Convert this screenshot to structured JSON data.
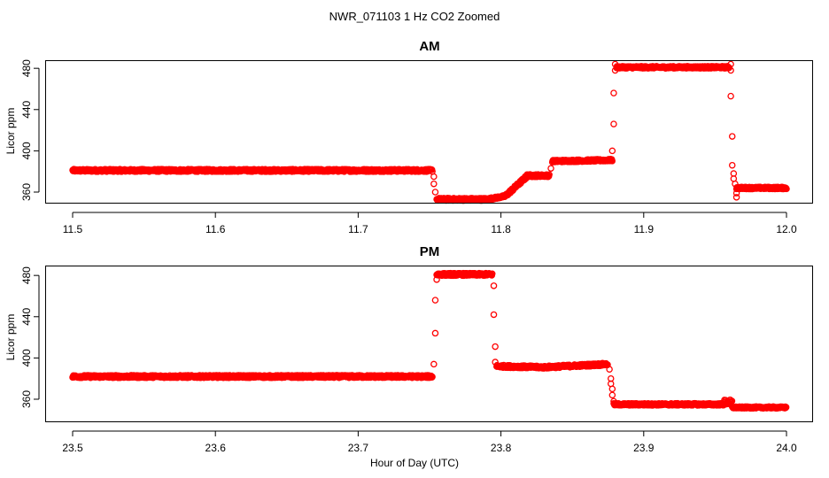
{
  "figure": {
    "title": "NWR_071103  1 Hz CO2 Zoomed",
    "xlabel": "Hour of Day (UTC)"
  },
  "colors": {
    "points": "#ff0000",
    "axes": "#000000",
    "background": "#ffffff"
  },
  "chart_data": [
    {
      "type": "scatter",
      "title": "AM",
      "xlabel": "",
      "ylabel": "Licor ppm",
      "xlim": [
        11.5,
        12.0
      ],
      "ylim": [
        346,
        489
      ],
      "x_ticks": [
        "11.5",
        "11.6",
        "11.7",
        "11.8",
        "11.9",
        "12.0"
      ],
      "y_ticks": [
        "360",
        "400",
        "440",
        "480"
      ],
      "grid": false,
      "segments": [
        {
          "x": [
            11.5,
            11.752
          ],
          "y": [
            381,
            381
          ],
          "noise": 1.2
        },
        {
          "x": [
            11.755,
            11.79
          ],
          "y": [
            353,
            353
          ],
          "noise": 1.2
        },
        {
          "x": [
            11.79,
            11.803
          ],
          "y": [
            353,
            356
          ],
          "noise": 1.0
        },
        {
          "x": [
            11.803,
            11.818
          ],
          "y": [
            356,
            375
          ],
          "noise": 1.5
        },
        {
          "x": [
            11.818,
            11.834
          ],
          "y": [
            376,
            376
          ],
          "noise": 1.2
        },
        {
          "x": [
            11.836,
            11.878
          ],
          "y": [
            390,
            391
          ],
          "noise": 1.0
        },
        {
          "x": [
            11.881,
            11.96
          ],
          "y": [
            481,
            481
          ],
          "noise": 1.0
        },
        {
          "x": [
            11.965,
            12.0
          ],
          "y": [
            364,
            364
          ],
          "noise": 1.0
        }
      ],
      "points": [
        {
          "x": 11.753,
          "y": 375
        },
        {
          "x": 11.753,
          "y": 368
        },
        {
          "x": 11.754,
          "y": 360
        },
        {
          "x": 11.835,
          "y": 383
        },
        {
          "x": 11.878,
          "y": 400
        },
        {
          "x": 11.879,
          "y": 426
        },
        {
          "x": 11.879,
          "y": 456
        },
        {
          "x": 11.88,
          "y": 478
        },
        {
          "x": 11.88,
          "y": 484
        },
        {
          "x": 11.961,
          "y": 484
        },
        {
          "x": 11.961,
          "y": 478
        },
        {
          "x": 11.961,
          "y": 453
        },
        {
          "x": 11.962,
          "y": 414
        },
        {
          "x": 11.962,
          "y": 386
        },
        {
          "x": 11.963,
          "y": 378
        },
        {
          "x": 11.963,
          "y": 373
        },
        {
          "x": 11.964,
          "y": 368
        },
        {
          "x": 11.965,
          "y": 359
        },
        {
          "x": 11.965,
          "y": 355
        }
      ]
    },
    {
      "type": "scatter",
      "title": "PM",
      "xlabel": "",
      "ylabel": "Licor ppm",
      "xlim": [
        23.5,
        24.0
      ],
      "ylim": [
        346,
        489
      ],
      "x_ticks": [
        "23.5",
        "23.6",
        "23.7",
        "23.8",
        "23.9",
        "24.0"
      ],
      "y_ticks": [
        "360",
        "400",
        "440",
        "480"
      ],
      "grid": false,
      "segments": [
        {
          "x": [
            23.5,
            23.752
          ],
          "y": [
            382,
            382
          ],
          "noise": 1.2
        },
        {
          "x": [
            23.755,
            23.794
          ],
          "y": [
            481,
            481
          ],
          "noise": 1.2
        },
        {
          "x": [
            23.797,
            23.83
          ],
          "y": [
            392,
            391
          ],
          "noise": 1.2
        },
        {
          "x": [
            23.83,
            23.875
          ],
          "y": [
            391,
            394
          ],
          "noise": 1.2
        },
        {
          "x": [
            23.879,
            23.956
          ],
          "y": [
            355,
            355
          ],
          "noise": 1.0
        },
        {
          "x": [
            23.956,
            23.962
          ],
          "y": [
            357,
            357
          ],
          "noise": 2.5
        },
        {
          "x": [
            23.962,
            24.0
          ],
          "y": [
            352,
            352
          ],
          "noise": 0.8
        }
      ],
      "points": [
        {
          "x": 23.753,
          "y": 394
        },
        {
          "x": 23.754,
          "y": 424
        },
        {
          "x": 23.754,
          "y": 456
        },
        {
          "x": 23.755,
          "y": 476
        },
        {
          "x": 23.795,
          "y": 470
        },
        {
          "x": 23.795,
          "y": 442
        },
        {
          "x": 23.796,
          "y": 411
        },
        {
          "x": 23.796,
          "y": 396
        },
        {
          "x": 23.876,
          "y": 389
        },
        {
          "x": 23.877,
          "y": 380
        },
        {
          "x": 23.877,
          "y": 375
        },
        {
          "x": 23.878,
          "y": 370
        },
        {
          "x": 23.878,
          "y": 364
        },
        {
          "x": 23.879,
          "y": 358
        }
      ]
    }
  ]
}
